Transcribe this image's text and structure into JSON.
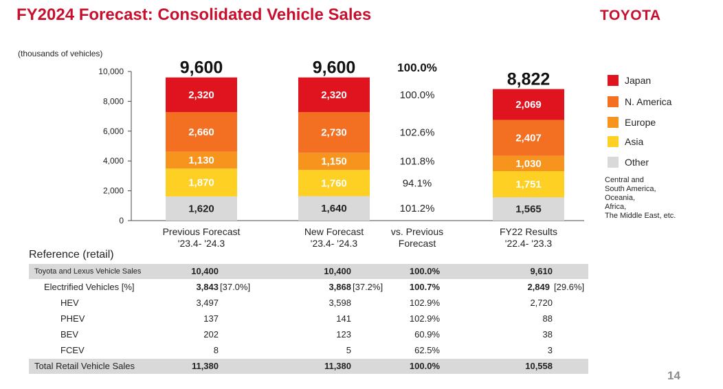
{
  "title": "FY2024 Forecast: Consolidated Vehicle Sales",
  "logo": "TOYOTA",
  "page_number": "14",
  "chart_data": {
    "type": "bar",
    "stacked": true,
    "unit_label": "(thousands of vehicles)",
    "ylim": [
      0,
      10000
    ],
    "yticks": [
      "0",
      "2,000",
      "4,000",
      "6,000",
      "8,000",
      "10,000"
    ],
    "categories": [
      {
        "line1": "Previous  Forecast",
        "line2": "'23.4- '24.3"
      },
      {
        "line1": "New Forecast",
        "line2": "'23.4- '24.3"
      },
      {
        "line1": "FY22 Results",
        "line2": "'22.4- '23.3"
      }
    ],
    "totals": [
      9600,
      9600,
      8822
    ],
    "total_labels": [
      "9,600",
      "9,600",
      "8,822"
    ],
    "series": [
      {
        "name": "Other",
        "color": "#d9d9d9",
        "text_color": "#222222",
        "values": [
          1620,
          1640,
          1565
        ],
        "labels": [
          "1,620",
          "1,640",
          "1,565"
        ]
      },
      {
        "name": "Asia",
        "color": "#fdd023",
        "text_color": "#ffffff",
        "values": [
          1870,
          1760,
          1751
        ],
        "labels": [
          "1,870",
          "1,760",
          "1,751"
        ]
      },
      {
        "name": "Europe",
        "color": "#f7941d",
        "text_color": "#ffffff",
        "values": [
          1130,
          1150,
          1030
        ],
        "labels": [
          "1,130",
          "1,150",
          "1,030"
        ]
      },
      {
        "name": "N. America",
        "color": "#f36f21",
        "text_color": "#ffffff",
        "values": [
          2660,
          2730,
          2407
        ],
        "labels": [
          "2,660",
          "2,730",
          "2,407"
        ]
      },
      {
        "name": "Japan",
        "color": "#e0141f",
        "text_color": "#ffffff",
        "values": [
          2320,
          2320,
          2069
        ],
        "labels": [
          "2,320",
          "2,320",
          "2,069"
        ]
      }
    ],
    "comparison": {
      "header": "vs. Previous",
      "header2": "Forecast",
      "total": "100.0%",
      "values": [
        "101.2%",
        "94.1%",
        "101.8%",
        "102.6%",
        "100.0%"
      ]
    }
  },
  "legend": {
    "items": [
      {
        "label": "Japan",
        "color": "#e0141f"
      },
      {
        "label": "N. America",
        "color": "#f36f21"
      },
      {
        "label": "Europe",
        "color": "#f7941d"
      },
      {
        "label": "Asia",
        "color": "#fdd023"
      },
      {
        "label": "Other",
        "color": "#d9d9d9"
      }
    ],
    "note_lines": [
      "Central and",
      "South America,",
      "Oceania,",
      "Africa,",
      "The Middle East, etc."
    ]
  },
  "reference": {
    "title": "Reference (retail)",
    "rows": [
      {
        "label": "Toyota and Lexus Vehicle Sales",
        "prev": "10,400",
        "prev_pct": "",
        "new": "10,400",
        "new_pct": "",
        "vs": "100.0%",
        "fy22": "9,610",
        "fy22_pct": ""
      },
      {
        "label": "Electrified Vehicles [%]",
        "prev": "3,843",
        "prev_pct": "[37.0%]",
        "new": "3,868",
        "new_pct": "[37.2%]",
        "vs": "100.7%",
        "fy22": "2,849",
        "fy22_pct": "[29.6%]"
      },
      {
        "label": "HEV",
        "prev": "3,497",
        "prev_pct": "",
        "new": "3,598",
        "new_pct": "",
        "vs": "102.9%",
        "fy22": "2,720",
        "fy22_pct": ""
      },
      {
        "label": "PHEV",
        "prev": "137",
        "prev_pct": "",
        "new": "141",
        "new_pct": "",
        "vs": "102.9%",
        "fy22": "88",
        "fy22_pct": ""
      },
      {
        "label": "BEV",
        "prev": "202",
        "prev_pct": "",
        "new": "123",
        "new_pct": "",
        "vs": "60.9%",
        "fy22": "38",
        "fy22_pct": ""
      },
      {
        "label": "FCEV",
        "prev": "8",
        "prev_pct": "",
        "new": "5",
        "new_pct": "",
        "vs": "62.5%",
        "fy22": "3",
        "fy22_pct": ""
      },
      {
        "label": "Total Retail Vehicle Sales",
        "prev": "11,380",
        "prev_pct": "",
        "new": "11,380",
        "new_pct": "",
        "vs": "100.0%",
        "fy22": "10,558",
        "fy22_pct": ""
      }
    ]
  }
}
